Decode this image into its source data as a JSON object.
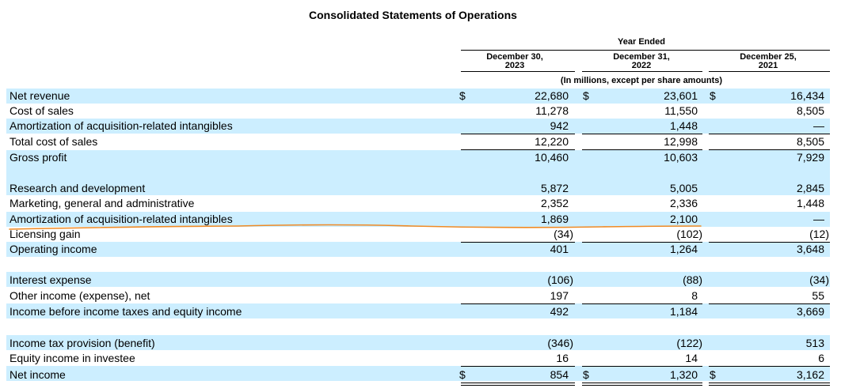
{
  "title": "Consolidated Statements of Operations",
  "header": {
    "year_ended": "Year Ended",
    "col1": [
      "December 30,",
      "2023"
    ],
    "col2": [
      "December 31,",
      "2022"
    ],
    "col3": [
      "December 25,",
      "2021"
    ],
    "units": "(In millions, except per share amounts)"
  },
  "currency_symbol": "$",
  "rows": [
    {
      "label": "Net revenue",
      "v1": "22,680",
      "v2": "23,601",
      "v3": "16,434"
    },
    {
      "label": "Cost of sales",
      "v1": "11,278",
      "v2": "11,550",
      "v3": "8,505"
    },
    {
      "label": "Amortization of acquisition-related intangibles",
      "v1": "942",
      "v2": "1,448",
      "v3": "—"
    },
    {
      "label": "Total cost of sales",
      "v1": "12,220",
      "v2": "12,998",
      "v3": "8,505"
    },
    {
      "label": "Gross profit",
      "v1": "10,460",
      "v2": "10,603",
      "v3": "7,929"
    },
    {
      "label": "Research and development",
      "v1": "5,872",
      "v2": "5,005",
      "v3": "2,845"
    },
    {
      "label": "Marketing, general and administrative",
      "v1": "2,352",
      "v2": "2,336",
      "v3": "1,448"
    },
    {
      "label": "Amortization of acquisition-related intangibles",
      "v1": "1,869",
      "v2": "2,100",
      "v3": "—"
    },
    {
      "label": "Licensing gain",
      "v1": "(34)",
      "v2": "(102)",
      "v3": "(12)"
    },
    {
      "label": "Operating income",
      "v1": "401",
      "v2": "1,264",
      "v3": "3,648"
    },
    {
      "label": "Interest expense",
      "v1": "(106)",
      "v2": "(88)",
      "v3": "(34)"
    },
    {
      "label": "Other income (expense), net",
      "v1": "197",
      "v2": "8",
      "v3": "55"
    },
    {
      "label": "Income before income taxes and equity income",
      "v1": "492",
      "v2": "1,184",
      "v3": "3,669"
    },
    {
      "label": "Income tax provision (benefit)",
      "v1": "(346)",
      "v2": "(122)",
      "v3": "513"
    },
    {
      "label": "Equity income in investee",
      "v1": "16",
      "v2": "14",
      "v3": "6"
    },
    {
      "label": "Net income",
      "v1": "854",
      "v2": "1,320",
      "v3": "3,162"
    }
  ],
  "colors": {
    "band": "#cceeff",
    "annotation": "#f08a24"
  }
}
